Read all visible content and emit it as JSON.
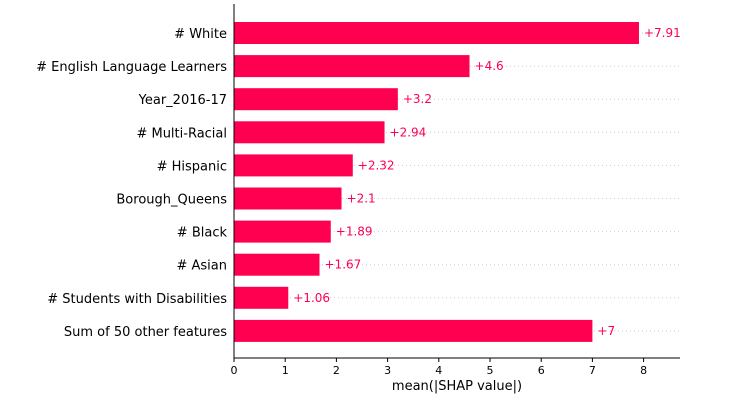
{
  "chart_data": {
    "type": "bar",
    "orientation": "horizontal",
    "categories": [
      "# White",
      "# English Language Learners",
      "Year_2016-17",
      "# Multi-Racial",
      "# Hispanic",
      "Borough_Queens",
      "# Black",
      "# Asian",
      "# Students with Disabilities",
      "Sum of 50 other features"
    ],
    "values": [
      7.91,
      4.6,
      3.2,
      2.94,
      2.32,
      2.1,
      1.89,
      1.67,
      1.06,
      7.0
    ],
    "value_labels": [
      "+7.91",
      "+4.6",
      "+3.2",
      "+2.94",
      "+2.32",
      "+2.1",
      "+1.89",
      "+1.67",
      "+1.06",
      "+7"
    ],
    "xlabel": "mean(|SHAP value|)",
    "ylabel": "",
    "title": "",
    "xlim": [
      0,
      8.7
    ],
    "xticks": [
      0,
      1,
      2,
      3,
      4,
      5,
      6,
      7,
      8
    ],
    "grid": "dotted horizontal lines per row",
    "colors": {
      "bar": "#ff0051",
      "label": "#ff0051",
      "grid": "#cccccc",
      "axis": "#000000"
    }
  }
}
